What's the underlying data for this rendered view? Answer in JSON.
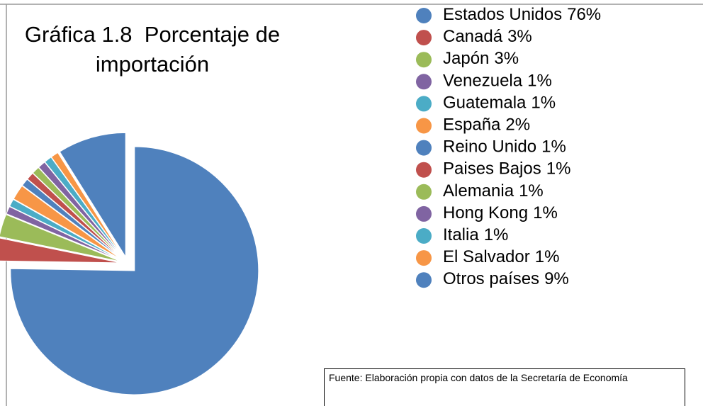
{
  "chart_data": {
    "type": "pie",
    "title": "Gráfica 1.8  Porcentaje de importación",
    "categories": [
      "Estados Unidos",
      "Canadá",
      "Japón",
      "Venezuela",
      "Guatemala",
      "España",
      "Reino Unido",
      "Paises Bajos",
      "Alemania",
      "Hong Kong",
      "Italia",
      "El Salvador",
      "Otros países"
    ],
    "values": [
      76,
      3,
      3,
      1,
      1,
      2,
      1,
      1,
      1,
      1,
      1,
      1,
      9
    ],
    "value_labels": [
      "76%",
      "3%",
      "3%",
      "1%",
      "1%",
      "2%",
      "1%",
      "1%",
      "1%",
      "1%",
      "1%",
      "1%",
      "9%"
    ],
    "colors": [
      "#4f81bd",
      "#c0504d",
      "#9bbb59",
      "#8064a2",
      "#4bacc6",
      "#f79646",
      "#4f81bd",
      "#c0504d",
      "#9bbb59",
      "#8064a2",
      "#4bacc6",
      "#f79646",
      "#4f81bd"
    ],
    "legend": "right",
    "note": "Fuente: Elaboración propia con datos de la Secretaría de Economía"
  }
}
